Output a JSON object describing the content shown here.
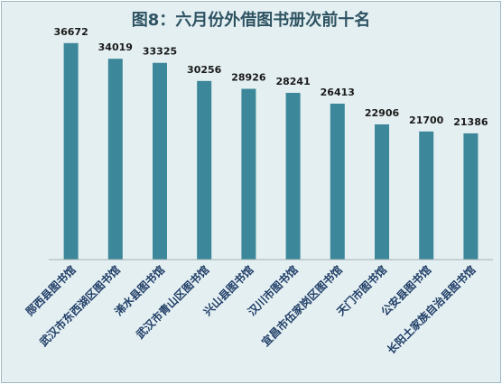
{
  "chart_data": {
    "type": "bar",
    "title": "图8：六月份外借图书册次前十名",
    "categories": [
      "郧西县图书馆",
      "武汉市东西湖区图书馆",
      "浠水县图书馆",
      "武汉市青山区图书馆",
      "兴山县图书馆",
      "汉川市图书馆",
      "宜昌市伍家岗区图书馆",
      "天门市图书馆",
      "公安县图书馆",
      "长阳土家族自治县图书馆"
    ],
    "values": [
      36672,
      34019,
      33325,
      30256,
      28926,
      28241,
      26413,
      22906,
      21700,
      21386
    ],
    "data_labels": [
      "36672",
      "34019",
      "33325",
      "30256",
      "28926",
      "28241",
      "26413",
      "22906",
      "21700",
      "21386"
    ],
    "xlabel": "",
    "ylabel": "",
    "ylim": [
      0,
      40000
    ],
    "grid": false,
    "legend": "none",
    "bar_color": "#3c8799",
    "axis_color": "#a6b0b3"
  }
}
